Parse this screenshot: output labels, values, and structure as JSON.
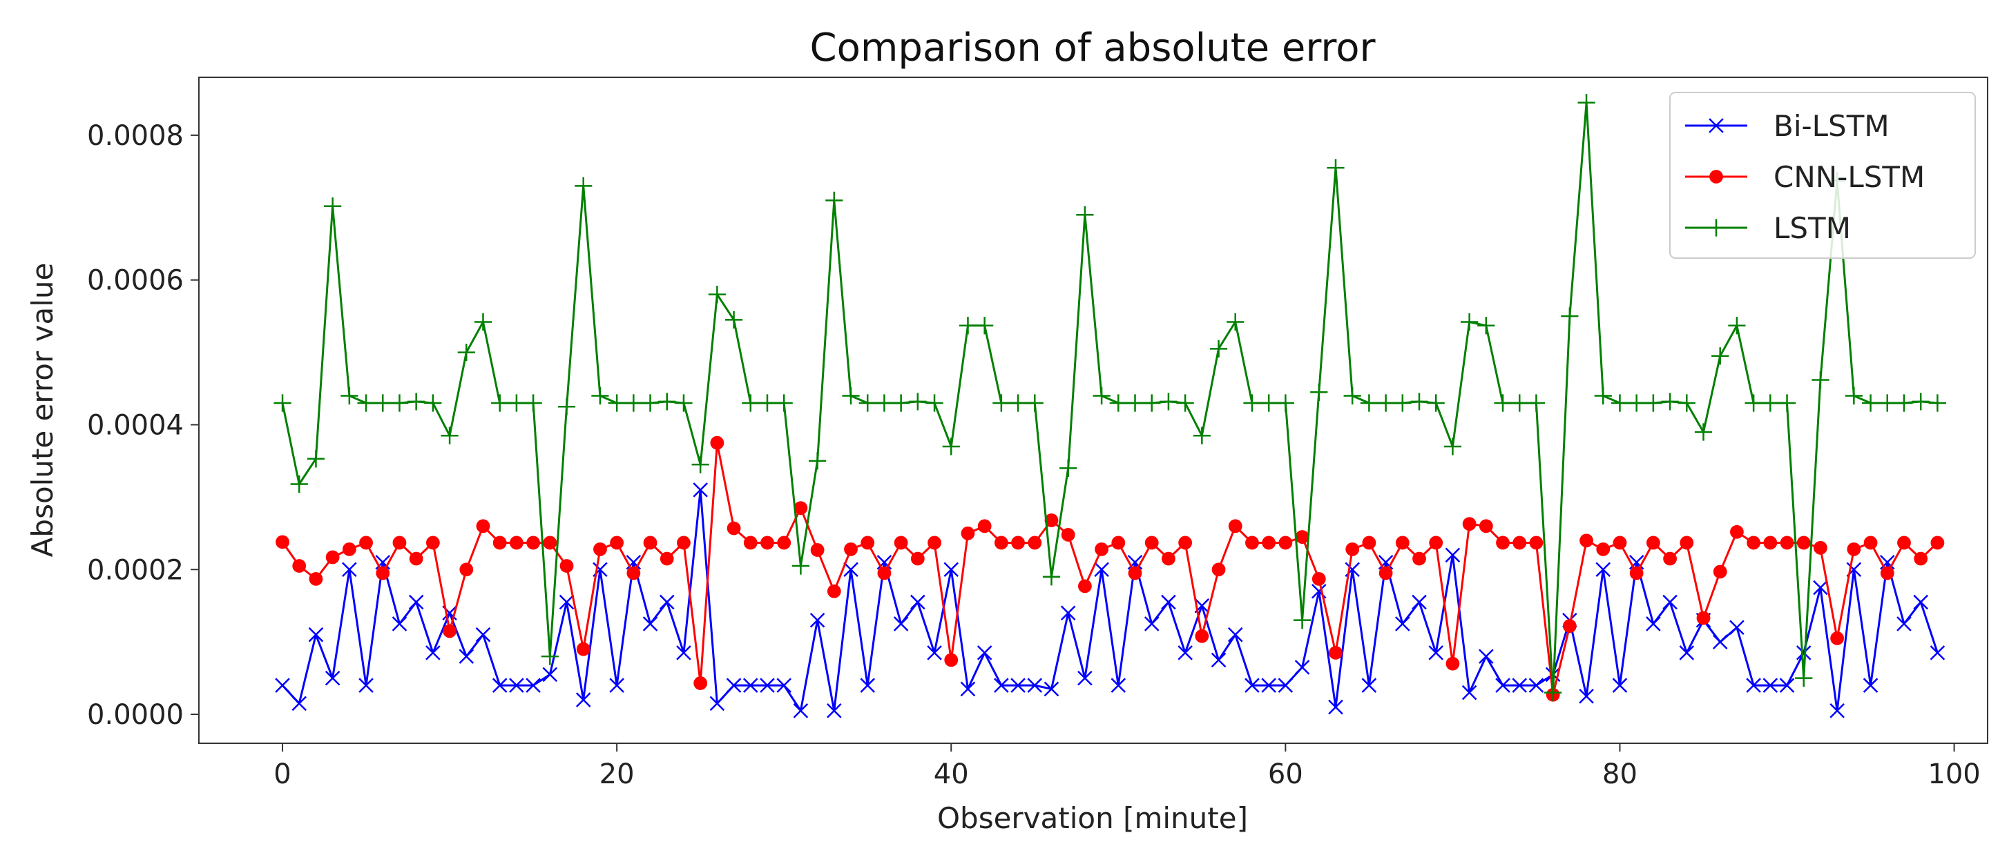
{
  "chart_data": {
    "type": "line",
    "title": "Comparison of absolute error",
    "xlabel": "Observation [minute]",
    "ylabel": "Absolute error value",
    "xlim": [
      -5,
      102
    ],
    "ylim": [
      -4e-05,
      0.00088
    ],
    "xticks": [
      0,
      20,
      40,
      60,
      80,
      100
    ],
    "xtick_labels": [
      "0",
      "20",
      "40",
      "60",
      "80",
      "100"
    ],
    "yticks": [
      0,
      0.0002,
      0.0004,
      0.0006,
      0.0008
    ],
    "ytick_labels": [
      "0.0000",
      "0.0002",
      "0.0004",
      "0.0006",
      "0.0008"
    ],
    "grid": false,
    "legend_position": "top-right",
    "series": [
      {
        "name": "Bi-LSTM",
        "color": "#0000ff",
        "marker": "x",
        "values": [
          4e-05,
          1.5e-05,
          0.00011,
          5e-05,
          0.0002,
          4e-05,
          0.00021,
          0.000125,
          0.000155,
          8.5e-05,
          0.00014,
          8e-05,
          0.00011,
          4e-05,
          4e-05,
          4e-05,
          5.5e-05,
          0.000155,
          2e-05,
          0.0002,
          4e-05,
          0.00021,
          0.000125,
          0.000155,
          8.5e-05,
          0.00031,
          1.5e-05,
          4e-05,
          4e-05,
          4e-05,
          4e-05,
          5e-06,
          0.00013,
          5e-06,
          0.0002,
          4e-05,
          0.00021,
          0.000125,
          0.000155,
          8.5e-05,
          0.0002,
          3.5e-05,
          8.5e-05,
          4e-05,
          4e-05,
          4e-05,
          3.5e-05,
          0.00014,
          5e-05,
          0.0002,
          4e-05,
          0.00021,
          0.000125,
          0.000155,
          8.5e-05,
          0.00015,
          7.5e-05,
          0.00011,
          4e-05,
          4e-05,
          4e-05,
          6.5e-05,
          0.00017,
          1e-05,
          0.0002,
          4e-05,
          0.00021,
          0.000125,
          0.000155,
          8.5e-05,
          0.00022,
          3e-05,
          8e-05,
          4e-05,
          4e-05,
          4e-05,
          5.5e-05,
          0.00013,
          2.5e-05,
          0.0002,
          4e-05,
          0.00021,
          0.000125,
          0.000155,
          8.5e-05,
          0.00013,
          0.0001,
          0.00012,
          4e-05,
          4e-05,
          4e-05,
          8.5e-05,
          0.000175,
          5e-06,
          0.0002,
          4e-05,
          0.00021,
          0.000125,
          0.000155,
          8.5e-05
        ]
      },
      {
        "name": "CNN-LSTM",
        "color": "#ff0000",
        "marker": "o",
        "values": [
          0.000238,
          0.000205,
          0.000187,
          0.000217,
          0.000228,
          0.000237,
          0.000195,
          0.000237,
          0.000215,
          0.000237,
          0.000115,
          0.0002,
          0.00026,
          0.000237,
          0.000237,
          0.000237,
          0.000237,
          0.000205,
          9e-05,
          0.000228,
          0.000237,
          0.000195,
          0.000237,
          0.000215,
          0.000237,
          4.3e-05,
          0.000375,
          0.000257,
          0.000237,
          0.000237,
          0.000237,
          0.000285,
          0.000227,
          0.00017,
          0.000228,
          0.000237,
          0.000195,
          0.000237,
          0.000215,
          0.000237,
          7.5e-05,
          0.00025,
          0.00026,
          0.000237,
          0.000237,
          0.000237,
          0.000268,
          0.000248,
          0.000177,
          0.000228,
          0.000237,
          0.000195,
          0.000237,
          0.000215,
          0.000237,
          0.000108,
          0.0002,
          0.00026,
          0.000237,
          0.000237,
          0.000237,
          0.000245,
          0.000187,
          8.5e-05,
          0.000228,
          0.000237,
          0.000195,
          0.000237,
          0.000215,
          0.000237,
          7e-05,
          0.000263,
          0.00026,
          0.000237,
          0.000237,
          0.000237,
          2.7e-05,
          0.000122,
          0.00024,
          0.000228,
          0.000237,
          0.000195,
          0.000237,
          0.000215,
          0.000237,
          0.000133,
          0.000197,
          0.000252,
          0.000237,
          0.000237,
          0.000237,
          0.000237,
          0.00023,
          0.000105,
          0.000228,
          0.000237,
          0.000195,
          0.000237,
          0.000215,
          0.000237
        ]
      },
      {
        "name": "LSTM",
        "color": "#008000",
        "marker": "+",
        "values": [
          0.00043,
          0.000318,
          0.000353,
          0.000702,
          0.00044,
          0.00043,
          0.00043,
          0.00043,
          0.000432,
          0.00043,
          0.000385,
          0.0005,
          0.000542,
          0.00043,
          0.00043,
          0.00043,
          8e-05,
          0.000425,
          0.00073,
          0.00044,
          0.00043,
          0.00043,
          0.00043,
          0.000432,
          0.00043,
          0.000345,
          0.00058,
          0.000545,
          0.00043,
          0.00043,
          0.00043,
          0.000205,
          0.00035,
          0.00071,
          0.00044,
          0.00043,
          0.00043,
          0.00043,
          0.000432,
          0.00043,
          0.00037,
          0.000537,
          0.000537,
          0.00043,
          0.00043,
          0.00043,
          0.00019,
          0.00034,
          0.00069,
          0.00044,
          0.00043,
          0.00043,
          0.00043,
          0.000432,
          0.00043,
          0.000385,
          0.000505,
          0.000542,
          0.00043,
          0.00043,
          0.00043,
          0.00013,
          0.000445,
          0.000755,
          0.00044,
          0.00043,
          0.00043,
          0.00043,
          0.000432,
          0.00043,
          0.00037,
          0.000542,
          0.000537,
          0.00043,
          0.00043,
          0.00043,
          3e-05,
          0.00055,
          0.000845,
          0.00044,
          0.00043,
          0.00043,
          0.00043,
          0.000432,
          0.00043,
          0.00039,
          0.000495,
          0.000537,
          0.00043,
          0.00043,
          0.00043,
          5e-05,
          0.000462,
          0.000737,
          0.00044,
          0.00043,
          0.00043,
          0.00043,
          0.000432,
          0.00043
        ]
      }
    ]
  }
}
